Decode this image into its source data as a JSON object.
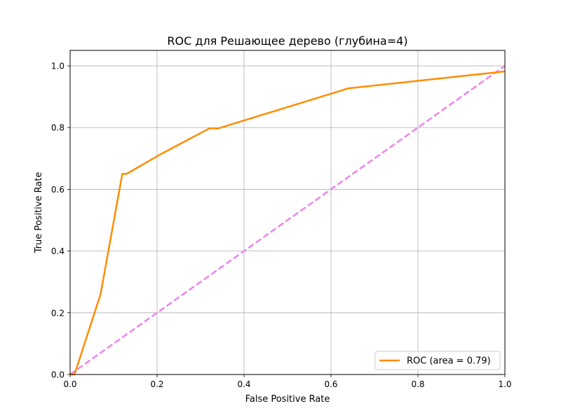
{
  "chart_data": {
    "type": "line",
    "title": "ROC для Решающее дерево (глубина=4)",
    "xlabel": "False Positive Rate",
    "ylabel": "True Positive Rate",
    "xlim": [
      0.0,
      1.0
    ],
    "ylim": [
      0.0,
      1.05
    ],
    "x_ticks": [
      "0.0",
      "0.2",
      "0.4",
      "0.6",
      "0.8",
      "1.0"
    ],
    "y_ticks": [
      "0.0",
      "0.2",
      "0.4",
      "0.6",
      "0.8",
      "1.0"
    ],
    "grid": true,
    "legend_position": "lower-right",
    "series": [
      {
        "name": "ROC (area = 0.79)",
        "color": "#ff8c00",
        "style": "solid",
        "x": [
          0.0,
          0.01,
          0.07,
          0.12,
          0.13,
          0.21,
          0.32,
          0.34,
          0.64,
          1.0
        ],
        "y": [
          0.0,
          0.0,
          0.26,
          0.65,
          0.65,
          0.715,
          0.797,
          0.797,
          0.927,
          0.982
        ]
      },
      {
        "color": "#ee82ee",
        "style": "dashed",
        "x": [
          0.0,
          1.0
        ],
        "y": [
          0.0,
          1.0
        ]
      }
    ]
  }
}
